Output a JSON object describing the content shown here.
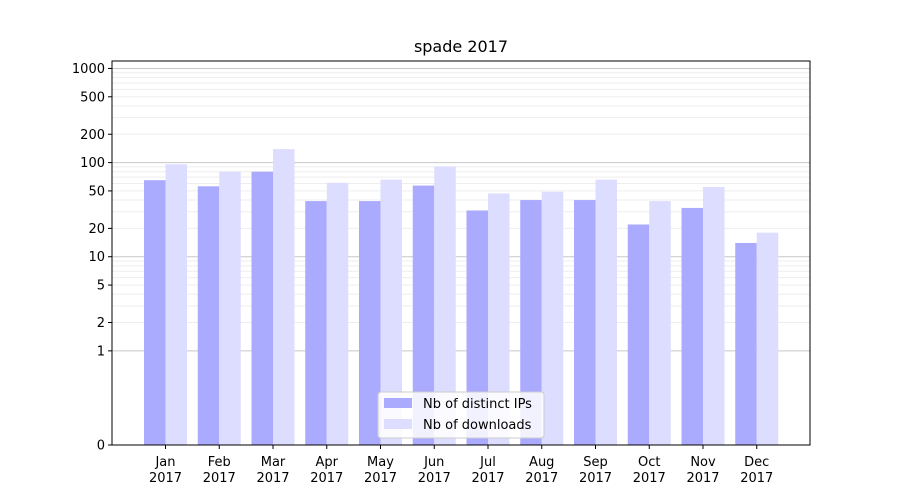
{
  "chart_data": {
    "type": "bar",
    "title": "spade 2017",
    "xlabel": "",
    "ylabel": "",
    "yscale": "symlog",
    "ylim": [
      0,
      1200
    ],
    "y_ticks": [
      0,
      1,
      2,
      5,
      10,
      20,
      50,
      100,
      200,
      500,
      1000
    ],
    "grid": true,
    "legend_position": "bottom-center",
    "categories": [
      {
        "month": "Jan",
        "year": "2017"
      },
      {
        "month": "Feb",
        "year": "2017"
      },
      {
        "month": "Mar",
        "year": "2017"
      },
      {
        "month": "Apr",
        "year": "2017"
      },
      {
        "month": "May",
        "year": "2017"
      },
      {
        "month": "Jun",
        "year": "2017"
      },
      {
        "month": "Jul",
        "year": "2017"
      },
      {
        "month": "Aug",
        "year": "2017"
      },
      {
        "month": "Sep",
        "year": "2017"
      },
      {
        "month": "Oct",
        "year": "2017"
      },
      {
        "month": "Nov",
        "year": "2017"
      },
      {
        "month": "Dec",
        "year": "2017"
      }
    ],
    "series": [
      {
        "name": "Nb of distinct IPs",
        "color": "#aaaaff",
        "values": [
          65,
          56,
          80,
          39,
          39,
          57,
          31,
          40,
          40,
          22,
          33,
          14
        ]
      },
      {
        "name": "Nb of downloads",
        "color": "#ddddff",
        "values": [
          96,
          80,
          139,
          61,
          66,
          91,
          47,
          49,
          66,
          39,
          55,
          18
        ]
      }
    ]
  }
}
